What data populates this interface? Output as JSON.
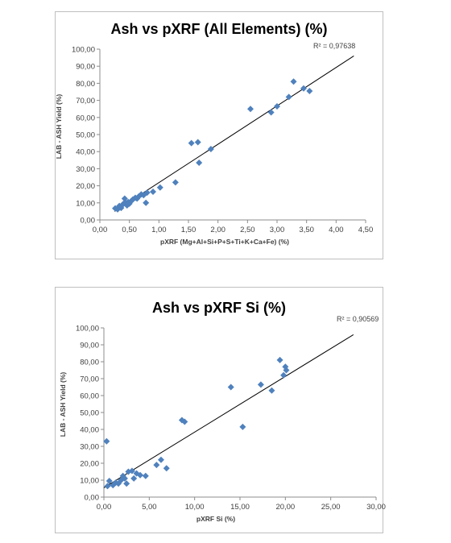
{
  "chart_data": [
    {
      "type": "scatter",
      "title": "Ash vs pXRF (All Elements) (%)",
      "xlabel": "pXRF (Mg+Al+Si+P+S+Ti+K+Ca+Fe) (%)",
      "ylabel": "LAB - ASH Yield (%)",
      "r2_label": "R² = 0,97638",
      "xlim": [
        0,
        4.5
      ],
      "ylim": [
        0,
        100
      ],
      "x_ticks": [
        0,
        0.5,
        1,
        1.5,
        2,
        2.5,
        3,
        3.5,
        4,
        4.5
      ],
      "x_tick_labels": [
        "0,00",
        "0,50",
        "1,00",
        "1,50",
        "2,00",
        "2,50",
        "3,00",
        "3,50",
        "4,00",
        "4,50"
      ],
      "y_ticks": [
        0,
        10,
        20,
        30,
        40,
        50,
        60,
        70,
        80,
        90,
        100
      ],
      "y_tick_labels": [
        "0,00",
        "10,00",
        "20,00",
        "30,00",
        "40,00",
        "50,00",
        "60,00",
        "70,00",
        "80,00",
        "90,00",
        "100,00"
      ],
      "grid": false,
      "marker_color": "#4f81bd",
      "trendline": {
        "x": [
          0.25,
          4.3
        ],
        "y": [
          5,
          96
        ],
        "color": "#000000"
      },
      "points": [
        {
          "x": 0.26,
          "y": 6.8
        },
        {
          "x": 0.3,
          "y": 6.2
        },
        {
          "x": 0.33,
          "y": 8.2
        },
        {
          "x": 0.36,
          "y": 7
        },
        {
          "x": 0.38,
          "y": 8.8
        },
        {
          "x": 0.4,
          "y": 9.5
        },
        {
          "x": 0.42,
          "y": 12.5
        },
        {
          "x": 0.44,
          "y": 10
        },
        {
          "x": 0.46,
          "y": 8.5
        },
        {
          "x": 0.48,
          "y": 10.5
        },
        {
          "x": 0.5,
          "y": 9.5
        },
        {
          "x": 0.53,
          "y": 11
        },
        {
          "x": 0.56,
          "y": 12
        },
        {
          "x": 0.6,
          "y": 13
        },
        {
          "x": 0.63,
          "y": 12.5
        },
        {
          "x": 0.66,
          "y": 13.8
        },
        {
          "x": 0.7,
          "y": 15
        },
        {
          "x": 0.74,
          "y": 14.5
        },
        {
          "x": 0.78,
          "y": 10
        },
        {
          "x": 0.8,
          "y": 16
        },
        {
          "x": 0.9,
          "y": 16.5
        },
        {
          "x": 1.02,
          "y": 19
        },
        {
          "x": 1.28,
          "y": 22
        },
        {
          "x": 1.55,
          "y": 45
        },
        {
          "x": 1.66,
          "y": 45.5
        },
        {
          "x": 1.68,
          "y": 33.5
        },
        {
          "x": 1.88,
          "y": 41.5
        },
        {
          "x": 2.55,
          "y": 65
        },
        {
          "x": 2.9,
          "y": 63
        },
        {
          "x": 3,
          "y": 66.5
        },
        {
          "x": 3.2,
          "y": 72
        },
        {
          "x": 3.28,
          "y": 81
        },
        {
          "x": 3.45,
          "y": 77
        },
        {
          "x": 3.55,
          "y": 75.5
        }
      ]
    },
    {
      "type": "scatter",
      "title": "Ash vs pXRF Si (%)",
      "xlabel": "pXRF Si (%)",
      "ylabel": "LAB - ASH Yield (%)",
      "r2_label": "R² = 0,90569",
      "xlim": [
        0,
        30
      ],
      "ylim": [
        0,
        100
      ],
      "x_ticks": [
        0,
        5,
        10,
        15,
        20,
        25,
        30
      ],
      "x_tick_labels": [
        "0,00",
        "5,00",
        "10,00",
        "15,00",
        "20,00",
        "25,00",
        "30,00"
      ],
      "y_ticks": [
        0,
        10,
        20,
        30,
        40,
        50,
        60,
        70,
        80,
        90,
        100
      ],
      "y_tick_labels": [
        "0,00",
        "10,00",
        "20,00",
        "30,00",
        "40,00",
        "50,00",
        "60,00",
        "70,00",
        "80,00",
        "90,00",
        "100,00"
      ],
      "grid": false,
      "marker_color": "#4f81bd",
      "trendline": {
        "x": [
          0,
          27.5
        ],
        "y": [
          5.5,
          96
        ],
        "color": "#000000"
      },
      "points": [
        {
          "x": 0.3,
          "y": 33
        },
        {
          "x": 0.4,
          "y": 6.5
        },
        {
          "x": 0.6,
          "y": 9.5
        },
        {
          "x": 1,
          "y": 7
        },
        {
          "x": 1.3,
          "y": 8.5
        },
        {
          "x": 1.6,
          "y": 8
        },
        {
          "x": 1.9,
          "y": 10
        },
        {
          "x": 2.1,
          "y": 12.5
        },
        {
          "x": 2.3,
          "y": 11
        },
        {
          "x": 2.5,
          "y": 8
        },
        {
          "x": 2.7,
          "y": 15
        },
        {
          "x": 3.1,
          "y": 15.5
        },
        {
          "x": 3.3,
          "y": 11
        },
        {
          "x": 3.6,
          "y": 14
        },
        {
          "x": 4,
          "y": 13
        },
        {
          "x": 4.6,
          "y": 12.5
        },
        {
          "x": 5.8,
          "y": 19
        },
        {
          "x": 6.3,
          "y": 22
        },
        {
          "x": 6.9,
          "y": 17
        },
        {
          "x": 8.6,
          "y": 45.5
        },
        {
          "x": 8.9,
          "y": 44.5
        },
        {
          "x": 14,
          "y": 65
        },
        {
          "x": 15.3,
          "y": 41.5
        },
        {
          "x": 17.3,
          "y": 66.5
        },
        {
          "x": 18.5,
          "y": 63
        },
        {
          "x": 19.4,
          "y": 81
        },
        {
          "x": 19.8,
          "y": 72
        },
        {
          "x": 20,
          "y": 77
        },
        {
          "x": 20.1,
          "y": 75
        }
      ]
    }
  ]
}
